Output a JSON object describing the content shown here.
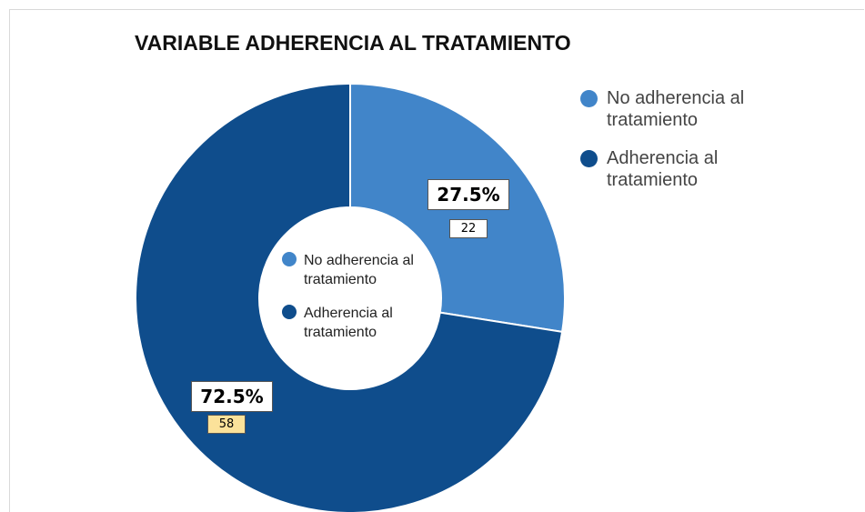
{
  "chart_data": {
    "type": "donut",
    "title": "VARIABLE ADHERENCIA AL TRATAMIENTO",
    "categories": [
      "No adherencia al tratamiento",
      "Adherencia al tratamiento"
    ],
    "values": [
      27.5,
      72.5
    ],
    "value_labels": [
      "27.5%",
      "72.5%"
    ],
    "counts": [
      22,
      58
    ],
    "colors": [
      "#4185c9",
      "#0f4d8c"
    ]
  }
}
